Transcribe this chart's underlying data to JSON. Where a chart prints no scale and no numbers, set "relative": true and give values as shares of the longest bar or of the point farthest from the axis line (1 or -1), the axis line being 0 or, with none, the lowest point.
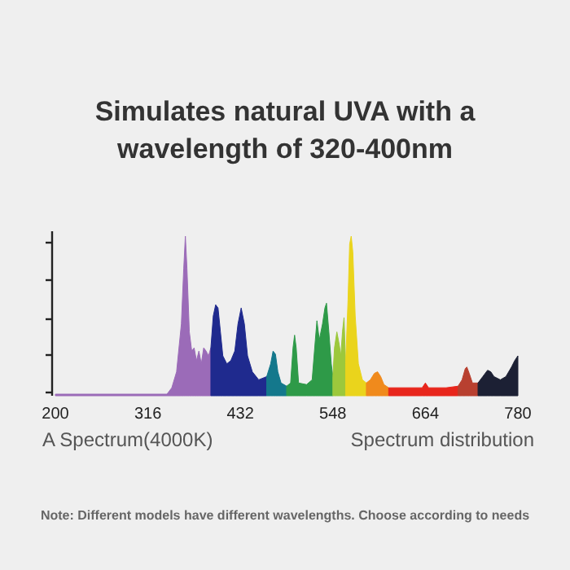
{
  "chart_data": {
    "type": "area",
    "relative": true,
    "title": "Simulates natural UVA with a wavelength of 320-400nm",
    "annotations": [
      "A Spectrum(4000K)",
      "Spectrum distribution",
      "Note: Different models have different wavelengths. Choose according to needs"
    ],
    "xlim": [
      200,
      780
    ],
    "xticks": [
      200,
      316,
      432,
      548,
      664,
      780
    ],
    "series": [
      {
        "color": "#9b6bb8",
        "x": [
          200,
          340,
          346,
          352,
          358,
          361,
          363,
          365,
          368,
          371,
          374,
          377,
          380,
          383,
          386,
          389,
          392,
          395
        ],
        "values": [
          0.01,
          0.01,
          0.05,
          0.15,
          0.45,
          0.8,
          1.0,
          0.8,
          0.4,
          0.28,
          0.3,
          0.22,
          0.28,
          0.2,
          0.3,
          0.28,
          0.25,
          0.3
        ]
      },
      {
        "color": "#1f2a8e",
        "x": [
          395,
          398,
          401,
          404,
          407,
          410,
          415,
          420,
          425,
          429,
          433,
          437,
          441,
          447,
          455,
          465
        ],
        "values": [
          0.3,
          0.5,
          0.57,
          0.55,
          0.4,
          0.25,
          0.2,
          0.22,
          0.28,
          0.45,
          0.55,
          0.45,
          0.25,
          0.15,
          0.1,
          0.12
        ]
      },
      {
        "color": "#14788c",
        "x": [
          465,
          470,
          473,
          476,
          479,
          483,
          490
        ],
        "values": [
          0.12,
          0.2,
          0.28,
          0.26,
          0.15,
          0.08,
          0.06
        ]
      },
      {
        "color": "#2e9a48",
        "x": [
          490,
          495,
          498,
          500,
          502,
          505,
          515,
          522,
          526,
          528,
          531,
          535,
          538,
          540,
          543,
          546,
          548
        ],
        "values": [
          0.06,
          0.08,
          0.3,
          0.38,
          0.3,
          0.08,
          0.07,
          0.1,
          0.35,
          0.47,
          0.35,
          0.45,
          0.55,
          0.58,
          0.4,
          0.2,
          0.12
        ]
      },
      {
        "color": "#9cc83c",
        "x": [
          548,
          550,
          553,
          556,
          558,
          560,
          562,
          564
        ],
        "values": [
          0.12,
          0.3,
          0.4,
          0.32,
          0.25,
          0.4,
          0.49,
          0.2
        ]
      },
      {
        "color": "#ead41c",
        "x": [
          564,
          567,
          569,
          571,
          573,
          576,
          580,
          585,
          590
        ],
        "values": [
          0.2,
          0.6,
          0.95,
          1.0,
          0.9,
          0.5,
          0.2,
          0.1,
          0.08
        ]
      },
      {
        "color": "#f08a1c",
        "x": [
          590,
          595,
          600,
          604,
          608,
          612,
          618
        ],
        "values": [
          0.08,
          0.1,
          0.14,
          0.15,
          0.12,
          0.07,
          0.05
        ]
      },
      {
        "color": "#e8261c",
        "x": [
          618,
          640,
          660,
          664,
          668,
          690,
          705
        ],
        "values": [
          0.05,
          0.05,
          0.05,
          0.08,
          0.05,
          0.05,
          0.06
        ]
      },
      {
        "color": "#b84030",
        "x": [
          705,
          710,
          714,
          716,
          719,
          723,
          730
        ],
        "values": [
          0.06,
          0.1,
          0.17,
          0.18,
          0.14,
          0.08,
          0.08
        ]
      },
      {
        "color": "#1c2034",
        "x": [
          730,
          736,
          742,
          746,
          750,
          758,
          765,
          772,
          776,
          780
        ],
        "values": [
          0.08,
          0.12,
          0.16,
          0.15,
          0.12,
          0.1,
          0.12,
          0.18,
          0.22,
          0.25
        ]
      }
    ]
  }
}
